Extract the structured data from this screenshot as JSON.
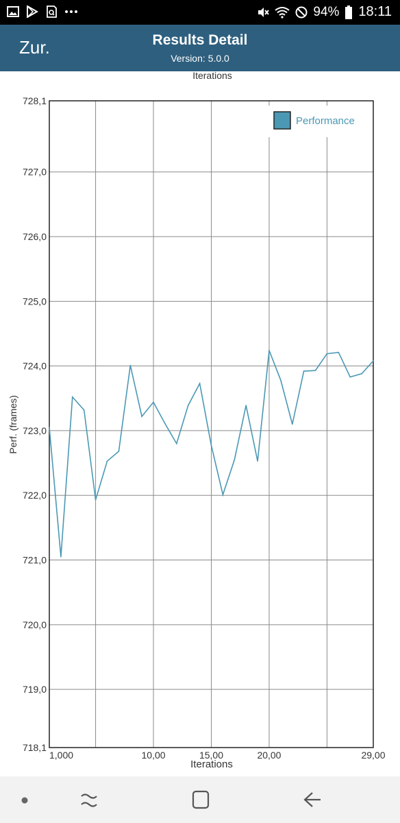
{
  "status_bar": {
    "battery": "94%",
    "time": "18:11",
    "icons": [
      "gallery-icon",
      "play-store-icon",
      "screenshot-search-icon",
      "more-dots-icon",
      "mute-icon",
      "wifi-icon",
      "do-not-disturb-icon",
      "battery-icon"
    ]
  },
  "app_bar": {
    "back_label": "Zur.",
    "title": "Results Detail",
    "subtitle": "Version: 5.0.0"
  },
  "chart": {
    "top_label": "Iterations"
  },
  "chart_data": {
    "type": "line",
    "xlabel": "Iterations",
    "ylabel": "Perf. (frames)",
    "xlim": [
      1,
      29
    ],
    "ylim": [
      718.1,
      728.1
    ],
    "x_ticks": [
      "1,000",
      "10,00",
      "15,00",
      "20,00",
      "29,00"
    ],
    "x_tick_values": [
      1,
      10,
      15,
      20,
      29
    ],
    "y_ticks": [
      "728,1",
      "727,0",
      "726,0",
      "725,0",
      "724,0",
      "723,0",
      "722,0",
      "721,0",
      "720,0",
      "719,0",
      "718,1"
    ],
    "y_tick_values": [
      728.1,
      727,
      726,
      725,
      724,
      723,
      722,
      721,
      720,
      719,
      718.1
    ],
    "grid": true,
    "legend_position": "top-right",
    "series": [
      {
        "name": "Performance",
        "color": "#4a98b4",
        "x": [
          1,
          2,
          3,
          4,
          5,
          6,
          7,
          8,
          9,
          10,
          11,
          12,
          13,
          14,
          15,
          16,
          17,
          18,
          19,
          20,
          21,
          22,
          23,
          24,
          25,
          26,
          27,
          28,
          29
        ],
        "values": [
          723.05,
          721.05,
          723.52,
          723.32,
          721.93,
          722.53,
          722.68,
          724.01,
          723.22,
          723.44,
          723.11,
          722.8,
          723.39,
          723.73,
          722.77,
          722.01,
          722.55,
          723.39,
          722.53,
          724.24,
          723.78,
          723.1,
          723.92,
          723.93,
          724.19,
          724.21,
          723.83,
          723.88,
          724.08
        ]
      }
    ]
  },
  "nav_bar": {
    "icons": [
      "dot-icon",
      "recent-apps-icon",
      "home-icon",
      "back-arrow-icon"
    ]
  }
}
